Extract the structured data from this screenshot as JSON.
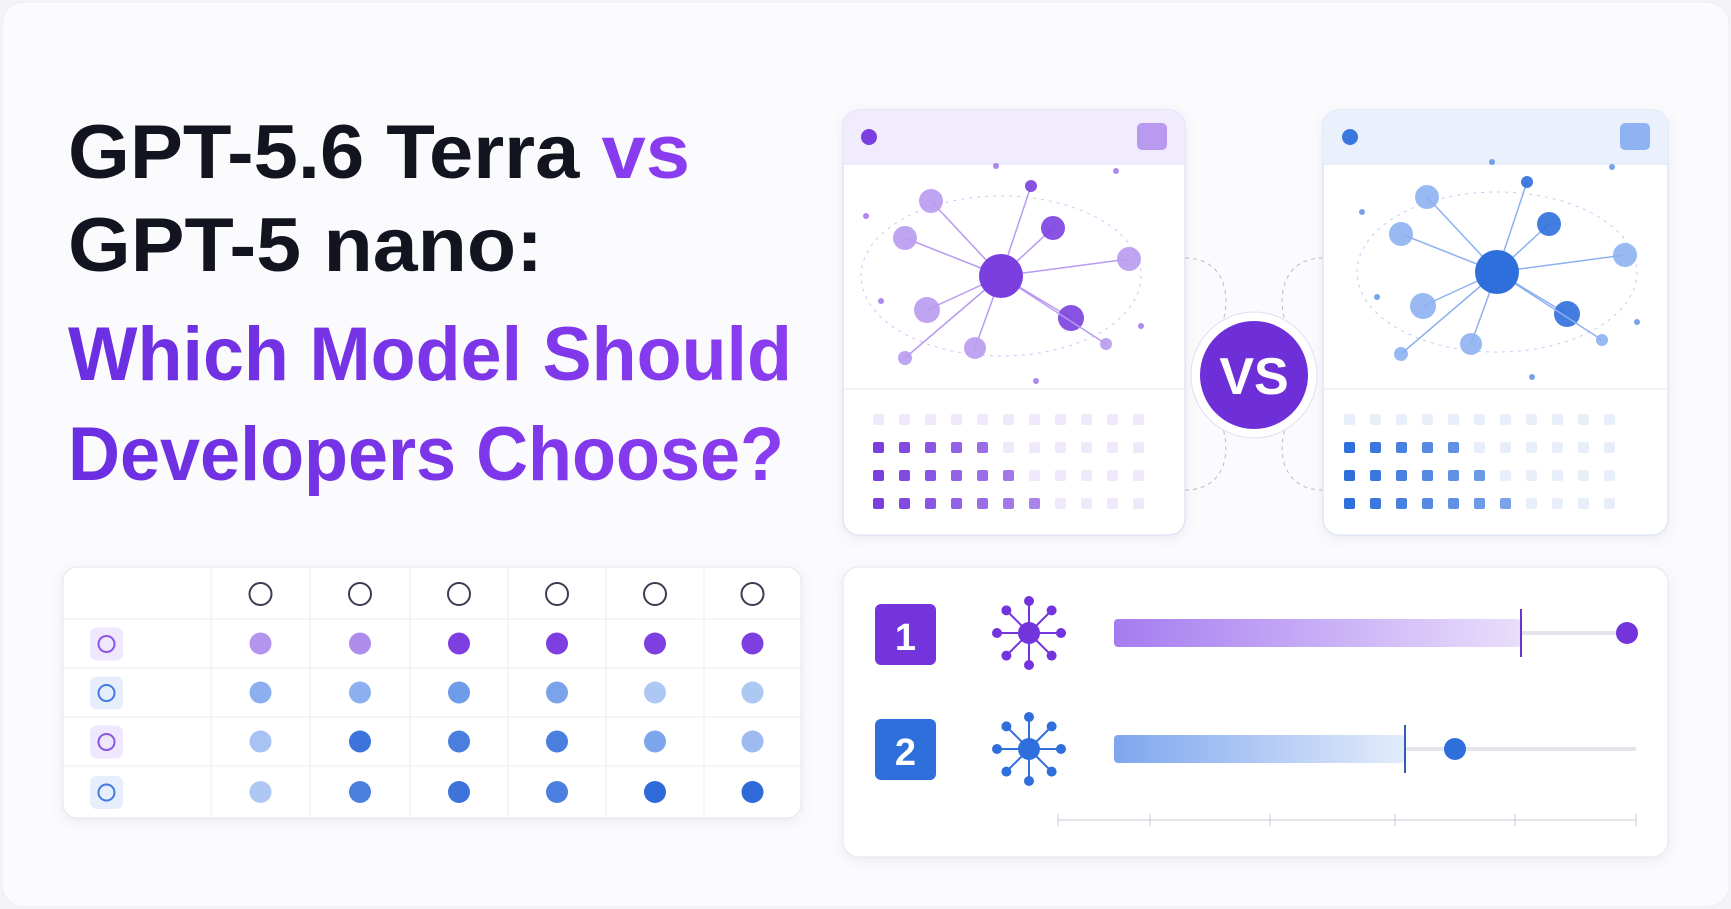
{
  "title": {
    "line1_main": "GPT-5.6 Terra",
    "line1_vs": "vs",
    "line2": "GPT-5 nano:",
    "line3": "Which Model Should",
    "line4": "Developers Choose?"
  },
  "badge": "VS",
  "ranks": [
    "1",
    "2"
  ]
}
